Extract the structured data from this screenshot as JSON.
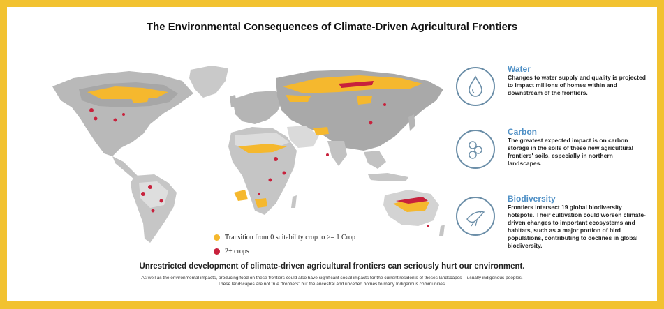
{
  "title": "The Environmental Consequences of Climate-Driven Agricultural Frontiers",
  "legend": [
    {
      "label": "Transition from 0 suitability crop to  >= 1 Crop",
      "color": "#f5b82e"
    },
    {
      "label": "2+ crops",
      "color": "#c8213c"
    }
  ],
  "impacts": [
    {
      "title": "Water",
      "icon": "water-drop-icon",
      "text": "Changes to water supply and quality is projected to impact millions of homes within and downstream of the frontiers."
    },
    {
      "title": "Carbon",
      "icon": "carbon-icon",
      "text": "The greatest expected impact is on carbon storage in the soils of these new agricultural frontiers' soils, especially in northern landscapes."
    },
    {
      "title": "Biodiversity",
      "icon": "bird-icon",
      "text": "Frontiers intersect 19 global biodiversity hotspots. Their cultivation could worsen climate-driven changes to important ecosystems and habitats, such as a major portion of bird populations, contributing to declines in global biodiversity."
    }
  ],
  "summary": "Unrestricted development of climate-driven agricultural frontiers can seriously hurt our environment.",
  "footnote_1": "As well as the environmental impacts, producing food on these frontiers could also have significant social impacts for the current residents of theses landscapes – usually indigenous peoples.",
  "footnote_2": "These landscapes are not true \"frontiers\" but the ancestral and unceded homes to many Indigenous communities.",
  "colors": {
    "border": "#f2c230",
    "land_dark": "#a9a9a9",
    "land_mid": "#c8c8c8",
    "land_light": "#e1e1e1",
    "accent_title": "#4f90c6",
    "ring": "#6b8ea8"
  }
}
